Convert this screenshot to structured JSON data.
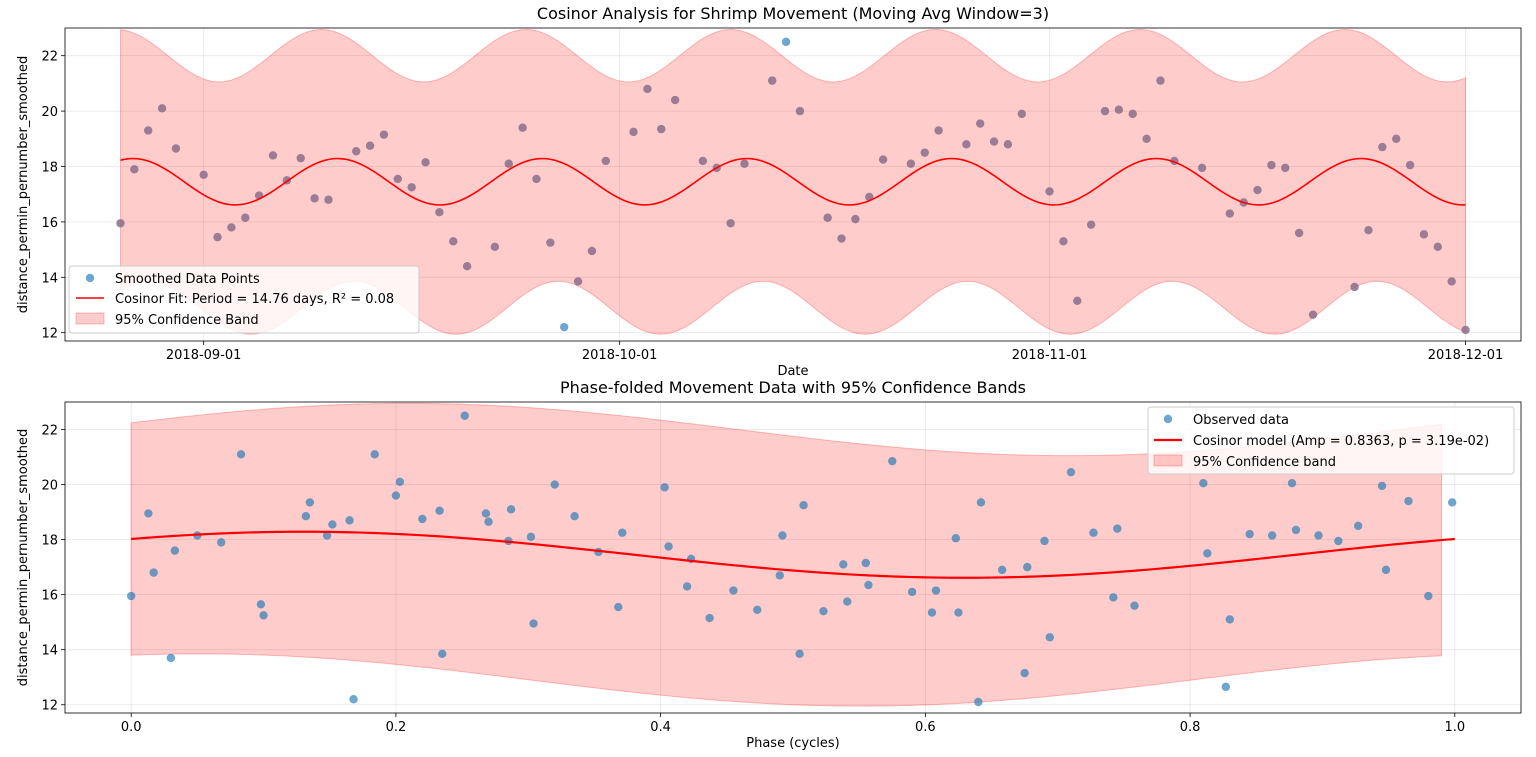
{
  "colors": {
    "points": "#1f77b4",
    "fit_line": "#ff0000",
    "band_fill": "#ff0000",
    "overlay_points": "#8a6d8a"
  },
  "chart_data": [
    {
      "type": "scatter",
      "title": "Cosinor Analysis for Shrimp Movement (Moving Avg Window=3)",
      "xlabel": "Date",
      "ylabel": "distance_permin_pernumber_smoothed",
      "x_type": "date",
      "xlim": [
        "2018-08-22",
        "2018-12-05"
      ],
      "ylim": [
        11.7,
        23.0
      ],
      "x_ticks": [
        "2018-09-01",
        "2018-10-01",
        "2018-11-01",
        "2018-12-01"
      ],
      "y_ticks": [
        12,
        14,
        16,
        18,
        20,
        22
      ],
      "grid": true,
      "legend_position": "lower-left",
      "legend": [
        "Smoothed Data Points",
        "Cosinor Fit: Period = 14.76 days, R² = 0.08",
        "95% Confidence Band"
      ],
      "fit": {
        "mesor": 17.45,
        "amplitude": 0.8363,
        "period_days": 14.76,
        "start": "2018-08-26",
        "end": "2018-12-01"
      },
      "band": {
        "half_width_min": 4.1,
        "half_width_max": 5.0
      },
      "points": [
        [
          "2018-08-26",
          15.95
        ],
        [
          "2018-08-27",
          17.9
        ],
        [
          "2018-08-28",
          19.3
        ],
        [
          "2018-08-29",
          20.1
        ],
        [
          "2018-08-30",
          18.65
        ],
        [
          "2018-09-01",
          17.7
        ],
        [
          "2018-09-02",
          15.45
        ],
        [
          "2018-09-03",
          15.8
        ],
        [
          "2018-09-04",
          16.15
        ],
        [
          "2018-09-05",
          16.95
        ],
        [
          "2018-09-06",
          18.4
        ],
        [
          "2018-09-07",
          17.5
        ],
        [
          "2018-09-08",
          18.3
        ],
        [
          "2018-09-09",
          16.85
        ],
        [
          "2018-09-10",
          16.8
        ],
        [
          "2018-09-12",
          18.55
        ],
        [
          "2018-09-13",
          18.75
        ],
        [
          "2018-09-14",
          19.15
        ],
        [
          "2018-09-15",
          17.55
        ],
        [
          "2018-09-16",
          17.25
        ],
        [
          "2018-09-17",
          18.15
        ],
        [
          "2018-09-18",
          16.35
        ],
        [
          "2018-09-19",
          15.3
        ],
        [
          "2018-09-20",
          14.4
        ],
        [
          "2018-09-22",
          15.1
        ],
        [
          "2018-09-23",
          18.1
        ],
        [
          "2018-09-24",
          19.4
        ],
        [
          "2018-09-25",
          17.55
        ],
        [
          "2018-09-26",
          15.25
        ],
        [
          "2018-09-27",
          12.2
        ],
        [
          "2018-09-28",
          13.85
        ],
        [
          "2018-09-29",
          14.95
        ],
        [
          "2018-09-30",
          18.2
        ],
        [
          "2018-10-02",
          19.25
        ],
        [
          "2018-10-03",
          20.8
        ],
        [
          "2018-10-04",
          19.35
        ],
        [
          "2018-10-05",
          20.4
        ],
        [
          "2018-10-07",
          18.2
        ],
        [
          "2018-10-08",
          17.95
        ],
        [
          "2018-10-09",
          15.95
        ],
        [
          "2018-10-10",
          18.1
        ],
        [
          "2018-10-12",
          21.1
        ],
        [
          "2018-10-13",
          22.5
        ],
        [
          "2018-10-14",
          20.0
        ],
        [
          "2018-10-16",
          16.15
        ],
        [
          "2018-10-17",
          15.4
        ],
        [
          "2018-10-18",
          16.1
        ],
        [
          "2018-10-19",
          16.9
        ],
        [
          "2018-10-20",
          18.25
        ],
        [
          "2018-10-22",
          18.1
        ],
        [
          "2018-10-23",
          18.5
        ],
        [
          "2018-10-24",
          19.3
        ],
        [
          "2018-10-26",
          18.8
        ],
        [
          "2018-10-27",
          19.55
        ],
        [
          "2018-10-28",
          18.9
        ],
        [
          "2018-10-29",
          18.8
        ],
        [
          "2018-10-30",
          19.9
        ],
        [
          "2018-11-01",
          17.1
        ],
        [
          "2018-11-02",
          15.3
        ],
        [
          "2018-11-03",
          13.15
        ],
        [
          "2018-11-04",
          15.9
        ],
        [
          "2018-11-05",
          20.0
        ],
        [
          "2018-11-06",
          20.05
        ],
        [
          "2018-11-07",
          19.9
        ],
        [
          "2018-11-08",
          19.0
        ],
        [
          "2018-11-09",
          21.1
        ],
        [
          "2018-11-10",
          18.2
        ],
        [
          "2018-11-12",
          17.95
        ],
        [
          "2018-11-14",
          16.3
        ],
        [
          "2018-11-15",
          16.7
        ],
        [
          "2018-11-16",
          17.15
        ],
        [
          "2018-11-17",
          18.05
        ],
        [
          "2018-11-18",
          17.95
        ],
        [
          "2018-11-19",
          15.6
        ],
        [
          "2018-11-20",
          12.65
        ],
        [
          "2018-11-23",
          13.65
        ],
        [
          "2018-11-24",
          15.7
        ],
        [
          "2018-11-25",
          18.7
        ],
        [
          "2018-11-26",
          19.0
        ],
        [
          "2018-11-27",
          18.05
        ],
        [
          "2018-11-28",
          15.55
        ],
        [
          "2018-11-29",
          15.1
        ],
        [
          "2018-11-30",
          13.85
        ],
        [
          "2018-12-01",
          12.1
        ]
      ]
    },
    {
      "type": "scatter",
      "title": "Phase-folded Movement Data with 95% Confidence Bands",
      "xlabel": "Phase (cycles)",
      "ylabel": "distance_permin_pernumber_smoothed",
      "xlim": [
        -0.05,
        1.05
      ],
      "ylim": [
        11.7,
        23.0
      ],
      "x_ticks": [
        0.0,
        0.2,
        0.4,
        0.6,
        0.8,
        1.0
      ],
      "y_ticks": [
        12,
        14,
        16,
        18,
        20,
        22
      ],
      "grid": true,
      "legend_position": "upper-right",
      "legend": [
        "Observed data",
        "Cosinor model (Amp = 0.8363, p = 3.19e-02)",
        "95% Confidence band"
      ],
      "fit": {
        "mesor": 17.45,
        "amplitude": 0.8363,
        "phase_peak": 0.13
      },
      "band": {
        "half_width_min": 4.1,
        "half_width_max": 5.0
      },
      "points": [
        [
          0.0,
          15.95
        ],
        [
          0.013,
          18.95
        ],
        [
          0.017,
          16.8
        ],
        [
          0.03,
          13.7
        ],
        [
          0.033,
          17.6
        ],
        [
          0.05,
          18.15
        ],
        [
          0.068,
          17.9
        ],
        [
          0.083,
          21.1
        ],
        [
          0.098,
          15.65
        ],
        [
          0.1,
          15.25
        ],
        [
          0.132,
          18.85
        ],
        [
          0.135,
          19.35
        ],
        [
          0.148,
          18.15
        ],
        [
          0.152,
          18.55
        ],
        [
          0.165,
          18.7
        ],
        [
          0.168,
          12.2
        ],
        [
          0.184,
          21.1
        ],
        [
          0.2,
          19.6
        ],
        [
          0.203,
          20.1
        ],
        [
          0.22,
          18.75
        ],
        [
          0.233,
          19.05
        ],
        [
          0.235,
          13.85
        ],
        [
          0.252,
          22.5
        ],
        [
          0.268,
          18.95
        ],
        [
          0.27,
          18.65
        ],
        [
          0.285,
          17.95
        ],
        [
          0.287,
          19.1
        ],
        [
          0.302,
          18.1
        ],
        [
          0.304,
          14.95
        ],
        [
          0.32,
          20.0
        ],
        [
          0.335,
          18.85
        ],
        [
          0.353,
          17.55
        ],
        [
          0.368,
          15.55
        ],
        [
          0.371,
          18.25
        ],
        [
          0.403,
          19.9
        ],
        [
          0.406,
          17.75
        ],
        [
          0.42,
          16.3
        ],
        [
          0.423,
          17.3
        ],
        [
          0.437,
          15.15
        ],
        [
          0.455,
          16.15
        ],
        [
          0.473,
          15.45
        ],
        [
          0.49,
          16.7
        ],
        [
          0.492,
          18.15
        ],
        [
          0.505,
          13.85
        ],
        [
          0.508,
          19.25
        ],
        [
          0.523,
          15.4
        ],
        [
          0.538,
          17.1
        ],
        [
          0.541,
          15.75
        ],
        [
          0.555,
          17.15
        ],
        [
          0.557,
          16.35
        ],
        [
          0.575,
          20.85
        ],
        [
          0.59,
          16.1
        ],
        [
          0.605,
          15.35
        ],
        [
          0.608,
          16.15
        ],
        [
          0.623,
          18.05
        ],
        [
          0.625,
          15.35
        ],
        [
          0.64,
          12.1
        ],
        [
          0.642,
          19.35
        ],
        [
          0.658,
          16.9
        ],
        [
          0.675,
          13.15
        ],
        [
          0.677,
          17.0
        ],
        [
          0.69,
          17.95
        ],
        [
          0.694,
          14.45
        ],
        [
          0.71,
          20.45
        ],
        [
          0.727,
          18.25
        ],
        [
          0.742,
          15.9
        ],
        [
          0.745,
          18.4
        ],
        [
          0.758,
          15.6
        ],
        [
          0.81,
          20.05
        ],
        [
          0.813,
          17.5
        ],
        [
          0.827,
          12.65
        ],
        [
          0.83,
          15.1
        ],
        [
          0.845,
          18.2
        ],
        [
          0.862,
          18.15
        ],
        [
          0.877,
          20.05
        ],
        [
          0.88,
          18.35
        ],
        [
          0.897,
          18.15
        ],
        [
          0.912,
          17.95
        ],
        [
          0.927,
          18.5
        ],
        [
          0.945,
          19.95
        ],
        [
          0.948,
          16.9
        ],
        [
          0.965,
          19.4
        ],
        [
          0.98,
          15.95
        ],
        [
          0.998,
          19.35
        ]
      ]
    }
  ]
}
